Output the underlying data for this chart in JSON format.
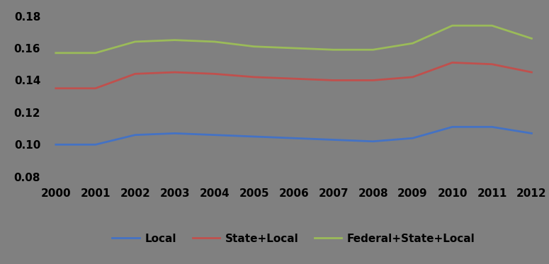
{
  "years": [
    2000,
    2001,
    2002,
    2003,
    2004,
    2005,
    2006,
    2007,
    2008,
    2009,
    2010,
    2011,
    2012
  ],
  "local": [
    0.1,
    0.1,
    0.106,
    0.107,
    0.106,
    0.105,
    0.104,
    0.103,
    0.102,
    0.104,
    0.111,
    0.111,
    0.107
  ],
  "state_local": [
    0.135,
    0.135,
    0.144,
    0.145,
    0.144,
    0.142,
    0.141,
    0.14,
    0.14,
    0.142,
    0.151,
    0.15,
    0.145
  ],
  "fed_state_local": [
    0.157,
    0.157,
    0.164,
    0.165,
    0.164,
    0.161,
    0.16,
    0.159,
    0.159,
    0.163,
    0.174,
    0.174,
    0.166
  ],
  "local_color": "#4472C4",
  "state_local_color": "#C0504D",
  "fed_state_local_color": "#9BBB59",
  "background_color": "#808080",
  "ylim": [
    0.075,
    0.185
  ],
  "yticks": [
    0.08,
    0.1,
    0.12,
    0.14,
    0.16,
    0.18
  ],
  "legend_labels": [
    "Local",
    "State+Local",
    "Federal+State+Local"
  ],
  "line_width": 2.0,
  "tick_fontsize": 11,
  "legend_fontsize": 11
}
